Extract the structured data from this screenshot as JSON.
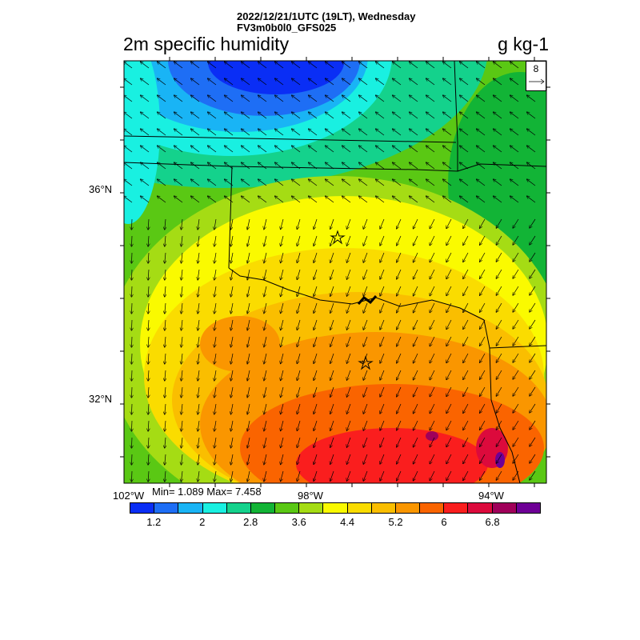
{
  "header": {
    "line1": "2022/12/21/1UTC (19LT), Wednesday",
    "line2": "FV3m0b0l0_GFS025"
  },
  "title": "2m specific humidity",
  "units": "g kg-1",
  "stats": "Min= 1.089 Max= 7.458",
  "reference_vector": "8",
  "lat_labels": [
    "36°N",
    "32°N"
  ],
  "lon_labels": [
    "102°W",
    "98°W",
    "94°W"
  ],
  "colorbar": {
    "colors": [
      "#0a2ef5",
      "#1e6ef5",
      "#19b4f5",
      "#19f0e1",
      "#14d28c",
      "#12b436",
      "#5ac814",
      "#a5dc14",
      "#fafa00",
      "#fadc00",
      "#fabe00",
      "#fa9600",
      "#fa6400",
      "#fa1e1e",
      "#dc0a3c",
      "#a0005a",
      "#6e0096"
    ],
    "labels": [
      "1.2",
      "2",
      "2.8",
      "3.6",
      "4.4",
      "5.2",
      "6",
      "6.8"
    ]
  }
}
